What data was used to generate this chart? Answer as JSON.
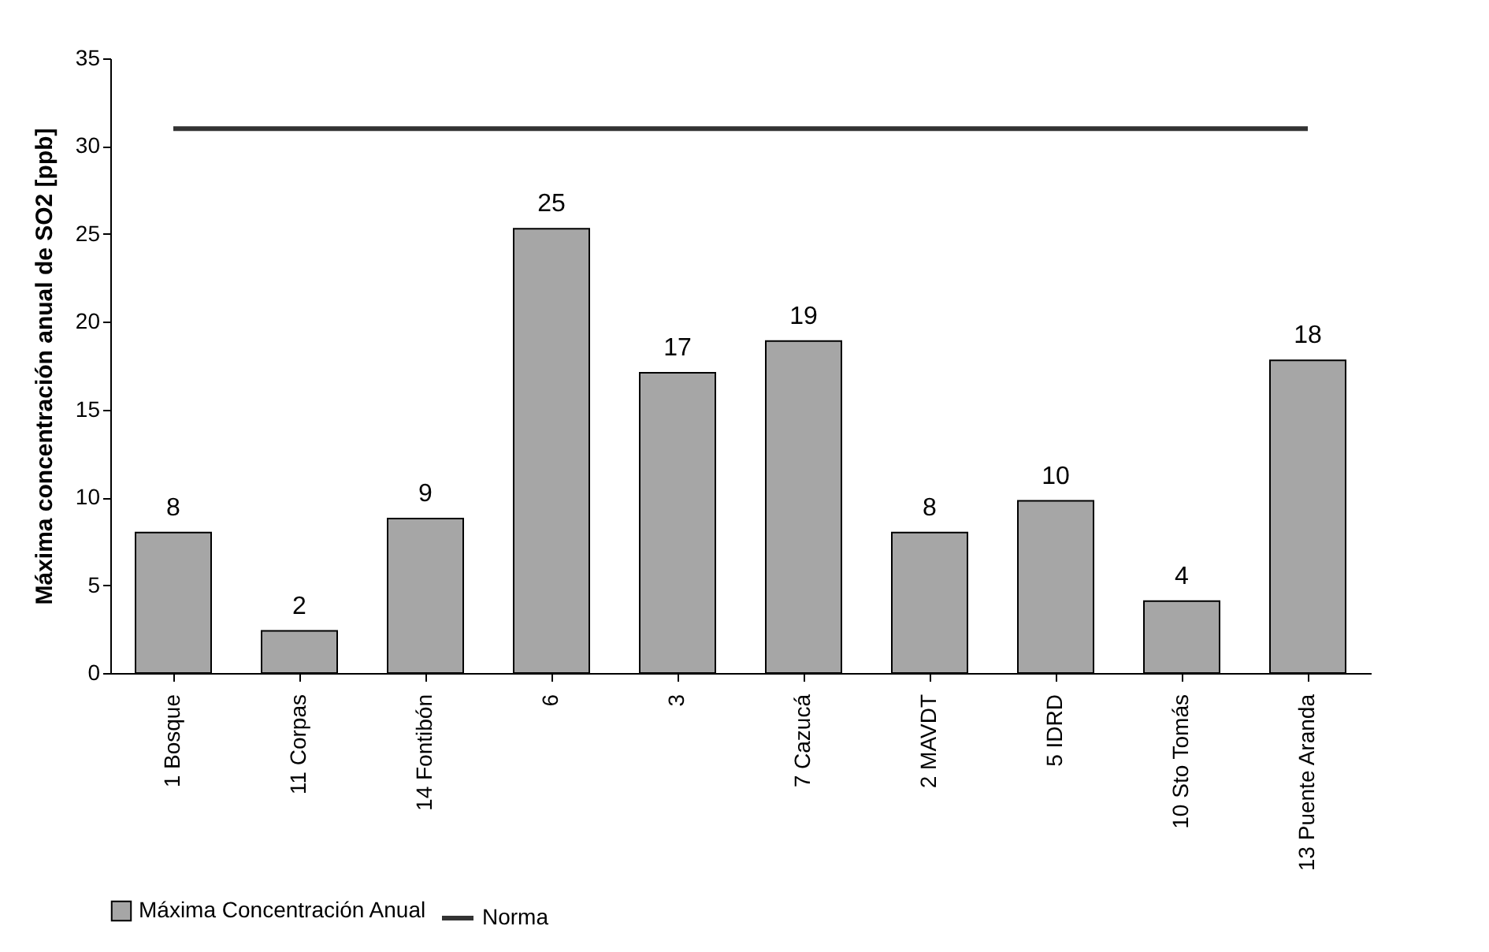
{
  "chart_data": {
    "type": "bar",
    "ylabel": "Máxima concentración anual de SO2   [ppb]",
    "categories": [
      "1 Bosque",
      "11 Corpas",
      "14 Fontibón",
      "6",
      "3",
      "7 Cazucá",
      "2 MAVDT",
      "5 IDRD",
      "10 Sto Tomás",
      "13 Puente Aranda"
    ],
    "series": [
      {
        "name": "Máxima Concentración Anual",
        "color": "#a6a6a6",
        "values": [
          8.0,
          2.4,
          8.8,
          25.3,
          17.1,
          18.9,
          8.0,
          9.8,
          4.1,
          17.8
        ],
        "value_labels": [
          "8",
          "2",
          "9",
          "25",
          "17",
          "19",
          "8",
          "10",
          "4",
          "18"
        ]
      },
      {
        "name": "Norma",
        "type": "line",
        "color": "#333333",
        "values": [
          31,
          31,
          31,
          31,
          31,
          31,
          31,
          31,
          31,
          31
        ]
      }
    ],
    "ylim": [
      0,
      35
    ],
    "yticks": [
      0,
      5,
      10,
      15,
      20,
      25,
      30,
      35
    ],
    "grid": false,
    "legend": "bottom"
  }
}
